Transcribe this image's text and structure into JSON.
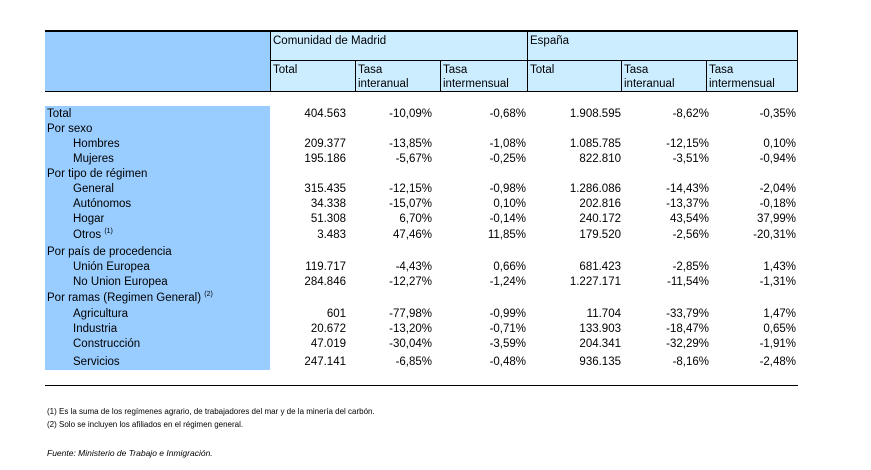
{
  "header": {
    "group_madrid": "Comunidad de Madrid",
    "group_espana": "España",
    "col_total": "Total",
    "col_tasa": "Tasa",
    "col_interanual": "interanual",
    "col_intermensual": "intermensual"
  },
  "rows": [
    {
      "label": "Total",
      "sub": false,
      "m_total": "404.563",
      "m_inter": "-10,09%",
      "m_mens": "-0,68%",
      "e_total": "1.908.595",
      "e_inter": "-8,62%",
      "e_mens": "-0,35%"
    },
    {
      "label": "Por sexo",
      "sub": false
    },
    {
      "label": "Hombres",
      "sub": true,
      "m_total": "209.377",
      "m_inter": "-13,85%",
      "m_mens": "-1,08%",
      "e_total": "1.085.785",
      "e_inter": "-12,15%",
      "e_mens": "0,10%"
    },
    {
      "label": "Mujeres",
      "sub": true,
      "m_total": "195.186",
      "m_inter": "-5,67%",
      "m_mens": "-0,25%",
      "e_total": "822.810",
      "e_inter": "-3,51%",
      "e_mens": "-0,94%"
    },
    {
      "label": "Por tipo de régimen",
      "sub": false
    },
    {
      "label": "General",
      "sub": true,
      "m_total": "315.435",
      "m_inter": "-12,15%",
      "m_mens": "-0,98%",
      "e_total": "1.286.086",
      "e_inter": "-14,43%",
      "e_mens": "-2,04%"
    },
    {
      "label": "Autónomos",
      "sub": true,
      "m_total": "34.338",
      "m_inter": "-15,07%",
      "m_mens": "0,10%",
      "e_total": "202.816",
      "e_inter": "-13,37%",
      "e_mens": "-0,18%"
    },
    {
      "label": "Hogar",
      "sub": true,
      "m_total": "51.308",
      "m_inter": "6,70%",
      "m_mens": "-0,14%",
      "e_total": "240.172",
      "e_inter": "43,54%",
      "e_mens": "37,99%"
    },
    {
      "label": "Otros",
      "sup": "(1)",
      "sub": true,
      "m_total": "3.483",
      "m_inter": "47,46%",
      "m_mens": "11,85%",
      "e_total": "179.520",
      "e_inter": "-2,56%",
      "e_mens": "-20,31%"
    },
    {
      "label": "Por país de procedencia",
      "sub": false
    },
    {
      "label": "Unión Europea",
      "sub": true,
      "m_total": "119.717",
      "m_inter": "-4,43%",
      "m_mens": "0,66%",
      "e_total": "681.423",
      "e_inter": "-2,85%",
      "e_mens": "1,43%"
    },
    {
      "label": "No Union Europea",
      "sub": true,
      "m_total": "284.846",
      "m_inter": "-12,27%",
      "m_mens": "-1,24%",
      "e_total": "1.227.171",
      "e_inter": "-11,54%",
      "e_mens": "-1,31%"
    },
    {
      "label": "Por ramas (Regimen General)",
      "sup": "(2)",
      "sub": false
    },
    {
      "label": "Agricultura",
      "sub": true,
      "m_total": "601",
      "m_inter": "-77,98%",
      "m_mens": "-0,99%",
      "e_total": "11.704",
      "e_inter": "-33,79%",
      "e_mens": "1,47%"
    },
    {
      "label": "Industria",
      "sub": true,
      "m_total": "20.672",
      "m_inter": "-13,20%",
      "m_mens": "-0,71%",
      "e_total": "133.903",
      "e_inter": "-18,47%",
      "e_mens": "0,65%"
    },
    {
      "label": "Construcción",
      "sub": true,
      "m_total": "47.019",
      "m_inter": "-30,04%",
      "m_mens": "-3,59%",
      "e_total": "204.341",
      "e_inter": "-32,29%",
      "e_mens": "-1,91%"
    },
    {
      "label": "Servicios",
      "sub": true,
      "m_total": "247.141",
      "m_inter": "-6,85%",
      "m_mens": "-0,48%",
      "e_total": "936.135",
      "e_inter": "-8,16%",
      "e_mens": "-2,48%"
    }
  ],
  "notes": [
    "(1) Es la suma de los regímenes  agrario, de trabajadores del mar y de la minería del carbón.",
    "(2) Solo se incluyen los afiliados en el régimen general."
  ],
  "source": "Fuente: Ministerio de Trabajo e Inmigración."
}
